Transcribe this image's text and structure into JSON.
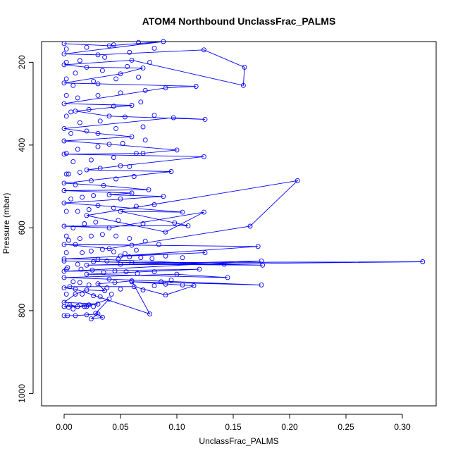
{
  "chart_data": {
    "type": "line",
    "title": "ATOM4 Northbound UnclassFrac_PALMS",
    "xlabel": "UnclassFrac_PALMS",
    "ylabel": "Pressure (mbar)",
    "xlim": [
      -0.02,
      0.33
    ],
    "ylim": [
      1030,
      150
    ],
    "y_reversed": true,
    "x_ticks": [
      0.0,
      0.05,
      0.1,
      0.15,
      0.2,
      0.25,
      0.3
    ],
    "x_tick_labels": [
      "0.00",
      "0.05",
      "0.10",
      "0.15",
      "0.20",
      "0.25",
      "0.30"
    ],
    "y_ticks": [
      200,
      400,
      600,
      800,
      1000
    ],
    "y_tick_labels": [
      "200",
      "400",
      "600",
      "800",
      "1000"
    ],
    "grid": false,
    "line_color": "#0000ff",
    "marker": "open-circle",
    "series": [
      {
        "name": "",
        "points": [
          [
            0.0,
            812
          ],
          [
            0.003,
            812
          ],
          [
            0.01,
            812
          ],
          [
            0.02,
            810
          ],
          [
            0.03,
            808
          ],
          [
            0.024,
            820
          ],
          [
            0.034,
            816
          ],
          [
            0.028,
            806
          ],
          [
            0.04,
            772
          ],
          [
            0.02,
            790
          ],
          [
            0.0,
            790
          ],
          [
            0.005,
            786
          ],
          [
            0.012,
            790
          ],
          [
            0.022,
            786
          ],
          [
            0.03,
            784
          ],
          [
            0.0,
            780
          ],
          [
            0.01,
            760
          ],
          [
            0.02,
            750
          ],
          [
            0.036,
            752
          ],
          [
            0.03,
            735
          ],
          [
            0.045,
            732
          ],
          [
            0.06,
            728
          ],
          [
            0.076,
            808
          ],
          [
            0.01,
            748
          ],
          [
            0.0,
            745
          ],
          [
            0.005,
            742
          ],
          [
            0.062,
            742
          ],
          [
            0.09,
            762
          ],
          [
            0.115,
            740
          ],
          [
            0.06,
            730
          ],
          [
            0.175,
            738
          ],
          [
            0.04,
            724
          ],
          [
            0.0,
            720
          ],
          [
            0.1,
            712
          ],
          [
            0.145,
            720
          ],
          [
            0.02,
            712
          ],
          [
            0.12,
            700
          ],
          [
            0.0,
            705
          ],
          [
            0.175,
            680
          ],
          [
            0.02,
            690
          ],
          [
            0.318,
            682
          ],
          [
            0.06,
            684
          ],
          [
            0.0,
            680
          ],
          [
            0.176,
            690
          ],
          [
            0.05,
            688
          ],
          [
            0.142,
            688
          ],
          [
            0.03,
            676
          ],
          [
            0.0,
            675
          ],
          [
            0.125,
            660
          ],
          [
            0.05,
            668
          ],
          [
            0.172,
            645
          ],
          [
            0.01,
            640
          ],
          [
            0.06,
            642
          ],
          [
            0.0,
            640
          ],
          [
            0.04,
            650
          ],
          [
            0.165,
            596
          ],
          [
            0.207,
            486
          ],
          [
            0.02,
            570
          ],
          [
            0.09,
            610
          ],
          [
            0.124,
            562
          ],
          [
            0.04,
            600
          ],
          [
            0.0,
            596
          ],
          [
            0.11,
            595
          ],
          [
            0.05,
            560
          ],
          [
            0.105,
            562
          ],
          [
            0.03,
            546
          ],
          [
            0.0,
            540
          ],
          [
            0.088,
            524
          ],
          [
            0.04,
            520
          ],
          [
            0.06,
            516
          ],
          [
            0.0,
            510
          ],
          [
            0.075,
            508
          ],
          [
            0.035,
            498
          ],
          [
            0.0,
            492
          ],
          [
            0.095,
            464
          ],
          [
            0.02,
            460
          ],
          [
            0.05,
            450
          ],
          [
            0.124,
            428
          ],
          [
            0.0,
            422
          ],
          [
            0.07,
            420
          ],
          [
            0.1,
            412
          ],
          [
            0.04,
            398
          ],
          [
            0.0,
            390
          ],
          [
            0.06,
            380
          ],
          [
            0.03,
            372
          ],
          [
            0.0,
            360
          ],
          [
            0.097,
            334
          ],
          [
            0.125,
            338
          ],
          [
            0.04,
            330
          ],
          [
            0.01,
            318
          ],
          [
            0.06,
            304
          ],
          [
            0.0,
            300
          ],
          [
            0.09,
            262
          ],
          [
            0.117,
            258
          ],
          [
            0.03,
            252
          ],
          [
            0.0,
            250
          ],
          [
            0.05,
            228
          ],
          [
            0.07,
            214
          ],
          [
            0.02,
            212
          ],
          [
            0.0,
            206
          ],
          [
            0.06,
            195
          ],
          [
            0.159,
            256
          ],
          [
            0.16,
            212
          ],
          [
            0.124,
            170
          ],
          [
            0.03,
            182
          ],
          [
            0.0,
            180
          ],
          [
            0.088,
            150
          ],
          [
            0.04,
            160
          ],
          [
            0.0,
            155
          ]
        ],
        "extra_points": [
          [
            0.004,
            792
          ],
          [
            0.008,
            796
          ],
          [
            0.014,
            786
          ],
          [
            0.018,
            790
          ],
          [
            0.026,
            790
          ],
          [
            0.016,
            760
          ],
          [
            0.026,
            764
          ],
          [
            0.032,
            766
          ],
          [
            0.008,
            730
          ],
          [
            0.014,
            732
          ],
          [
            0.022,
            738
          ],
          [
            0.042,
            760
          ],
          [
            0.038,
            745
          ],
          [
            0.05,
            748
          ],
          [
            0.07,
            750
          ],
          [
            0.08,
            740
          ],
          [
            0.09,
            736
          ],
          [
            0.105,
            738
          ],
          [
            0.086,
            730
          ],
          [
            0.095,
            726
          ],
          [
            0.015,
            700
          ],
          [
            0.025,
            702
          ],
          [
            0.035,
            708
          ],
          [
            0.045,
            704
          ],
          [
            0.055,
            706
          ],
          [
            0.065,
            710
          ],
          [
            0.08,
            706
          ],
          [
            0.003,
            696
          ],
          [
            0.012,
            688
          ],
          [
            0.026,
            682
          ],
          [
            0.038,
            680
          ],
          [
            0.048,
            676
          ],
          [
            0.058,
            670
          ],
          [
            0.068,
            672
          ],
          [
            0.078,
            674
          ],
          [
            0.09,
            668
          ],
          [
            0.105,
            672
          ],
          [
            0.016,
            660
          ],
          [
            0.024,
            656
          ],
          [
            0.034,
            652
          ],
          [
            0.044,
            658
          ],
          [
            0.054,
            662
          ],
          [
            0.064,
            654
          ],
          [
            0.084,
            640
          ],
          [
            0.004,
            630
          ],
          [
            0.014,
            626
          ],
          [
            0.024,
            620
          ],
          [
            0.034,
            616
          ],
          [
            0.046,
            620
          ],
          [
            0.058,
            626
          ],
          [
            0.072,
            632
          ],
          [
            0.008,
            600
          ],
          [
            0.018,
            590
          ],
          [
            0.028,
            586
          ],
          [
            0.048,
            582
          ],
          [
            0.07,
            590
          ],
          [
            0.098,
            588
          ],
          [
            0.012,
            560
          ],
          [
            0.022,
            556
          ],
          [
            0.044,
            552
          ],
          [
            0.064,
            548
          ],
          [
            0.08,
            544
          ],
          [
            0.006,
            530
          ],
          [
            0.016,
            526
          ],
          [
            0.026,
            522
          ],
          [
            0.05,
            530
          ],
          [
            0.01,
            496
          ],
          [
            0.024,
            486
          ],
          [
            0.046,
            482
          ],
          [
            0.062,
            476
          ],
          [
            0.004,
            470
          ],
          [
            0.014,
            466
          ],
          [
            0.032,
            456
          ],
          [
            0.058,
            452
          ],
          [
            0.008,
            440
          ],
          [
            0.024,
            436
          ],
          [
            0.044,
            430
          ],
          [
            0.064,
            420
          ],
          [
            0.012,
            410
          ],
          [
            0.03,
            404
          ],
          [
            0.052,
            396
          ],
          [
            0.072,
            388
          ],
          [
            0.006,
            372
          ],
          [
            0.02,
            366
          ],
          [
            0.046,
            360
          ],
          [
            0.07,
            356
          ],
          [
            0.014,
            346
          ],
          [
            0.032,
            342
          ],
          [
            0.054,
            332
          ],
          [
            0.08,
            328
          ],
          [
            0.006,
            320
          ],
          [
            0.022,
            314
          ],
          [
            0.044,
            306
          ],
          [
            0.068,
            296
          ],
          [
            0.012,
            286
          ],
          [
            0.03,
            280
          ],
          [
            0.05,
            274
          ],
          [
            0.072,
            268
          ],
          [
            0.008,
            256
          ],
          [
            0.026,
            246
          ],
          [
            0.046,
            240
          ],
          [
            0.066,
            236
          ],
          [
            0.01,
            226
          ],
          [
            0.034,
            220
          ],
          [
            0.056,
            210
          ],
          [
            0.076,
            200
          ],
          [
            0.014,
            196
          ],
          [
            0.036,
            188
          ],
          [
            0.058,
            176
          ],
          [
            0.08,
            166
          ],
          [
            0.02,
            164
          ],
          [
            0.044,
            158
          ],
          [
            0.066,
            152
          ],
          [
            0.002,
            168
          ],
          [
            0.002,
            200
          ],
          [
            0.002,
            240
          ],
          [
            0.002,
            280
          ],
          [
            0.002,
            330
          ],
          [
            0.002,
            420
          ],
          [
            0.002,
            470
          ],
          [
            0.002,
            560
          ],
          [
            0.002,
            620
          ],
          [
            0.002,
            660
          ],
          [
            0.002,
            700
          ],
          [
            0.002,
            760
          ]
        ]
      }
    ]
  }
}
